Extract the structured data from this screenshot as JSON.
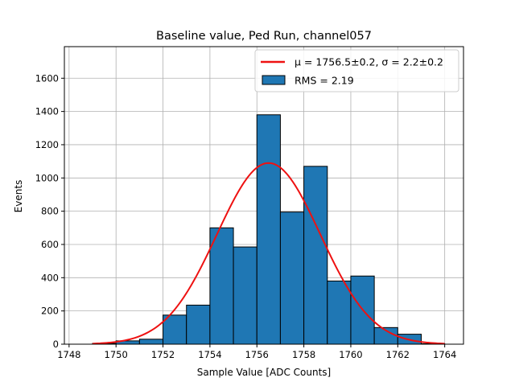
{
  "chart_data": {
    "type": "bar",
    "title": "Baseline value, Ped Run, channel057",
    "xlabel": "Sample Value [ADC Counts]",
    "ylabel": "Events",
    "xlim": [
      1747.8,
      1764.8
    ],
    "ylim": [
      0,
      1790
    ],
    "xticks": [
      1748,
      1750,
      1752,
      1754,
      1756,
      1758,
      1760,
      1762,
      1764
    ],
    "yticks": [
      0,
      200,
      400,
      600,
      800,
      1000,
      1200,
      1400,
      1600
    ],
    "grid": true,
    "legend_position": "top-right",
    "bins": [
      {
        "start": 1749.0,
        "end": 1750.0,
        "count": 5
      },
      {
        "start": 1750.0,
        "end": 1751.0,
        "count": 20
      },
      {
        "start": 1751.0,
        "end": 1752.0,
        "count": 30
      },
      {
        "start": 1752.0,
        "end": 1753.0,
        "count": 175
      },
      {
        "start": 1753.0,
        "end": 1754.0,
        "count": 235
      },
      {
        "start": 1754.0,
        "end": 1755.0,
        "count": 700
      },
      {
        "start": 1755.0,
        "end": 1756.0,
        "count": 585
      },
      {
        "start": 1756.0,
        "end": 1757.0,
        "count": 1380
      },
      {
        "start": 1757.0,
        "end": 1758.0,
        "count": 795
      },
      {
        "start": 1758.0,
        "end": 1759.0,
        "count": 1070
      },
      {
        "start": 1759.0,
        "end": 1760.0,
        "count": 380
      },
      {
        "start": 1760.0,
        "end": 1761.0,
        "count": 410
      },
      {
        "start": 1761.0,
        "end": 1762.0,
        "count": 100
      },
      {
        "start": 1762.0,
        "end": 1763.0,
        "count": 60
      },
      {
        "start": 1763.0,
        "end": 1764.0,
        "count": 3
      }
    ],
    "fit": {
      "type": "gaussian",
      "mu": 1756.5,
      "sigma": 2.2,
      "amplitude": 1090,
      "x_range": [
        1749.0,
        1764.0
      ]
    },
    "legend": [
      {
        "label": "μ = 1756.5±0.2, σ = 2.2±0.2",
        "kind": "line",
        "color": "#ee1111"
      },
      {
        "label": "RMS = 2.19",
        "kind": "patch",
        "color": "#1f77b4"
      }
    ],
    "colors": {
      "bar_fill": "#1f77b4",
      "bar_edge": "#000000",
      "fit_line": "#ee1111",
      "grid": "#b0b0b0"
    }
  }
}
